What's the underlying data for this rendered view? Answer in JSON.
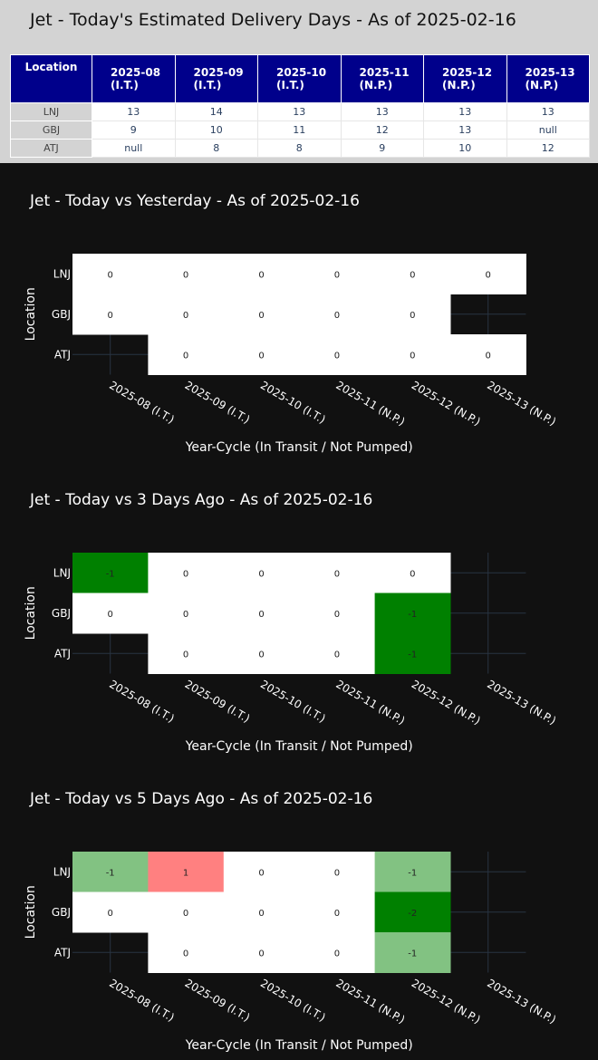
{
  "estimated_table": {
    "title": "Jet - Today's Estimated Delivery Days - As of 2025-02-16",
    "header_location": "Location",
    "columns": [
      {
        "line1": "2025-08",
        "line2": "(I.T.)"
      },
      {
        "line1": "2025-09",
        "line2": "(I.T.)"
      },
      {
        "line1": "2025-10",
        "line2": "(I.T.)"
      },
      {
        "line1": "2025-11",
        "line2": "(N.P.)"
      },
      {
        "line1": "2025-12",
        "line2": "(N.P.)"
      },
      {
        "line1": "2025-13",
        "line2": "(N.P.)"
      }
    ],
    "rows": [
      {
        "location": "LNJ",
        "cells": [
          "13",
          "14",
          "13",
          "13",
          "13",
          "13"
        ]
      },
      {
        "location": "GBJ",
        "cells": [
          "9",
          "10",
          "11",
          "12",
          "13",
          "null"
        ]
      },
      {
        "location": "ATJ",
        "cells": [
          "null",
          "8",
          "8",
          "9",
          "10",
          "12"
        ]
      }
    ],
    "colors": {
      "header_bg": "#00008b",
      "header_text": "#ffffff",
      "page_bg": "#d3d3d3"
    }
  },
  "chart_data": [
    {
      "type": "heatmap",
      "title": "Jet - Today vs Yesterday - As of 2025-02-16",
      "xlabel": "Year-Cycle (In Transit / Not Pumped)",
      "ylabel": "Location",
      "categories": [
        "2025-08 (I.T.)",
        "2025-09 (I.T.)",
        "2025-10 (I.T.)",
        "2025-11 (N.P.)",
        "2025-12 (N.P.)",
        "2025-13 (N.P.)"
      ],
      "rows": [
        "LNJ",
        "GBJ",
        "ATJ"
      ],
      "values": [
        [
          0,
          0,
          0,
          0,
          0,
          0
        ],
        [
          0,
          0,
          0,
          0,
          0,
          null
        ],
        [
          null,
          0,
          0,
          0,
          0,
          0
        ]
      ],
      "grid": true
    },
    {
      "type": "heatmap",
      "title": "Jet - Today vs 3 Days Ago - As of 2025-02-16",
      "xlabel": "Year-Cycle (In Transit / Not Pumped)",
      "ylabel": "Location",
      "categories": [
        "2025-08 (I.T.)",
        "2025-09 (I.T.)",
        "2025-10 (I.T.)",
        "2025-11 (N.P.)",
        "2025-12 (N.P.)",
        "2025-13 (N.P.)"
      ],
      "rows": [
        "LNJ",
        "GBJ",
        "ATJ"
      ],
      "values": [
        [
          -1,
          0,
          0,
          0,
          0,
          null
        ],
        [
          0,
          0,
          0,
          0,
          -1,
          null
        ],
        [
          null,
          0,
          0,
          0,
          -1,
          null
        ]
      ],
      "grid": true
    },
    {
      "type": "heatmap",
      "title": "Jet - Today vs 5 Days Ago - As of 2025-02-16",
      "xlabel": "Year-Cycle (In Transit / Not Pumped)",
      "ylabel": "Location",
      "categories": [
        "2025-08 (I.T.)",
        "2025-09 (I.T.)",
        "2025-10 (I.T.)",
        "2025-11 (N.P.)",
        "2025-12 (N.P.)",
        "2025-13 (N.P.)"
      ],
      "rows": [
        "LNJ",
        "GBJ",
        "ATJ"
      ],
      "values": [
        [
          -1,
          1,
          0,
          0,
          -1,
          null
        ],
        [
          0,
          0,
          0,
          0,
          -2,
          null
        ],
        [
          null,
          0,
          0,
          0,
          -1,
          null
        ]
      ],
      "grid": true
    }
  ],
  "colors": {
    "chart_bg": "#111111",
    "grid": "#283442",
    "zero": "#ffffff",
    "neg_strong": "#008000",
    "neg_light": "#82c282",
    "pos_light": "#ff8080"
  }
}
